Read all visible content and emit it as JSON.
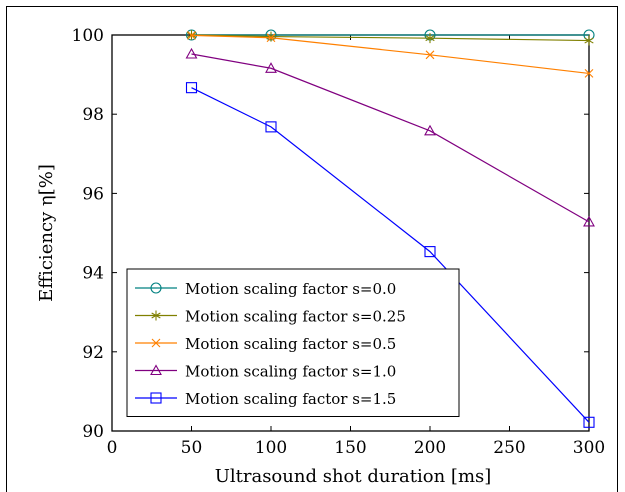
{
  "chart_data": {
    "type": "line",
    "xlabel": "Ultrasound shot duration [ms]",
    "ylabel": "Efficiency η[%]",
    "xlim": [
      0,
      300
    ],
    "ylim": [
      90,
      100
    ],
    "x_ticks": [
      "0",
      "50",
      "100",
      "150",
      "200",
      "250",
      "300"
    ],
    "y_ticks": [
      "90",
      "92",
      "94",
      "96",
      "98",
      "100"
    ],
    "grid": false,
    "legend_position": "bottom-left",
    "x": [
      50,
      100,
      200,
      300
    ],
    "series": [
      {
        "name": "Motion scaling factor s=0.0",
        "values": [
          100.0,
          100.0,
          100.0,
          100.0
        ],
        "color": "#008080",
        "marker": "circle"
      },
      {
        "name": "Motion scaling factor s=0.25",
        "values": [
          100.0,
          99.96,
          99.92,
          99.86
        ],
        "color": "#808000",
        "marker": "star"
      },
      {
        "name": "Motion scaling factor s=0.5",
        "values": [
          99.99,
          99.93,
          99.5,
          99.03
        ],
        "color": "#ff8000",
        "marker": "x"
      },
      {
        "name": "Motion scaling factor s=1.0",
        "values": [
          99.52,
          99.16,
          97.58,
          95.28
        ],
        "color": "#800080",
        "marker": "triangle"
      },
      {
        "name": "Motion scaling factor s=1.5",
        "values": [
          98.67,
          97.68,
          94.53,
          90.22
        ],
        "color": "#0000ff",
        "marker": "square"
      }
    ]
  }
}
